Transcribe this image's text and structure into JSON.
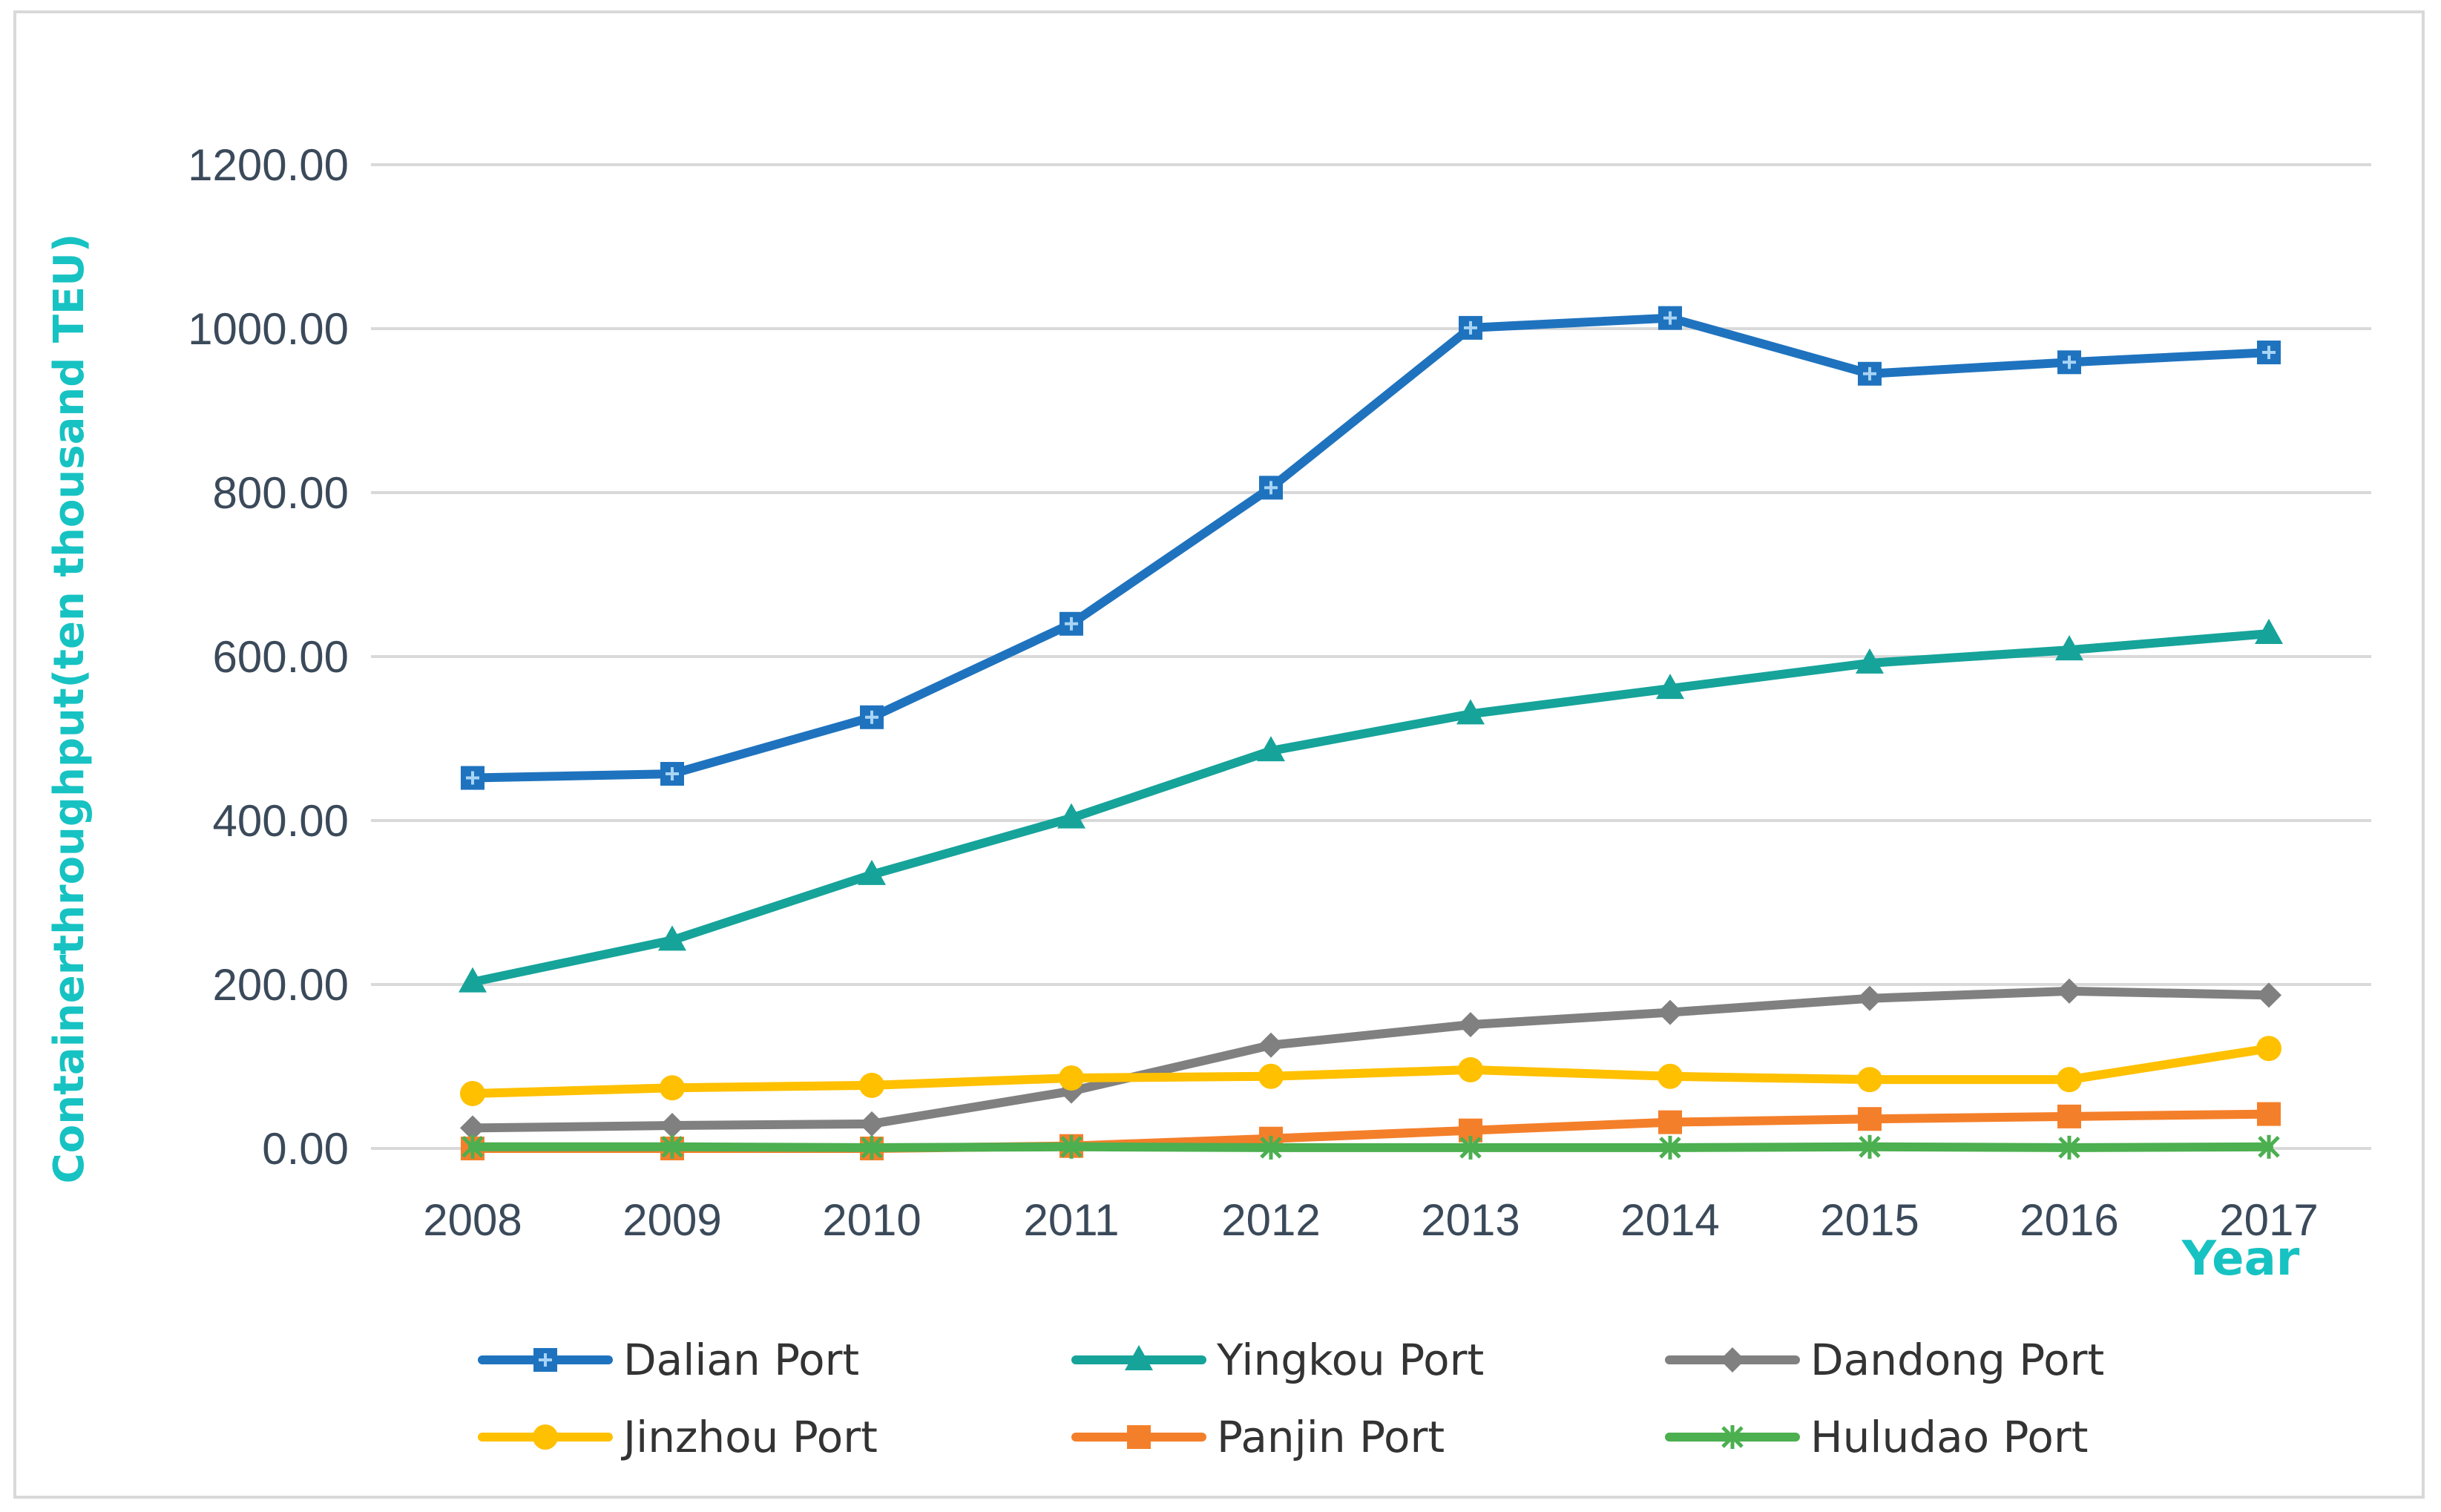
{
  "chart_data": {
    "type": "line",
    "title": "",
    "xlabel": "Year",
    "ylabel": "Containerthroughput(ten thousand TEU)",
    "ylim": [
      0,
      1200
    ],
    "yticks": [
      "0.00",
      "200.00",
      "400.00",
      "600.00",
      "800.00",
      "1000.00",
      "1200.00"
    ],
    "ytick_values": [
      0,
      200,
      400,
      600,
      800,
      1000,
      1200
    ],
    "categories": [
      "2008",
      "2009",
      "2010",
      "2011",
      "2012",
      "2013",
      "2014",
      "2015",
      "2016",
      "2017"
    ],
    "grid": true,
    "legend_position": "bottom",
    "series": [
      {
        "name": "Dalian Port",
        "color": "#1f73be",
        "marker": "plus-square",
        "values": [
          452,
          457,
          526,
          640,
          806,
          1001,
          1013,
          945,
          959,
          971
        ]
      },
      {
        "name": "Yingkou Port",
        "color": "#16a39a",
        "marker": "triangle",
        "values": [
          203,
          254,
          334,
          403,
          485,
          530,
          561,
          592,
          608,
          628
        ]
      },
      {
        "name": "Dandong Port",
        "color": "#808080",
        "marker": "diamond",
        "values": [
          25,
          28,
          30,
          70,
          126,
          151,
          166,
          183,
          192,
          187
        ]
      },
      {
        "name": "Jinzhou Port",
        "color": "#ffc000",
        "marker": "circle",
        "values": [
          67,
          74,
          77,
          86,
          88,
          96,
          88,
          84,
          84,
          122
        ]
      },
      {
        "name": "Panjin Port",
        "color": "#f47f2a",
        "marker": "square",
        "values": [
          0,
          0,
          0,
          3,
          12,
          22,
          32,
          36,
          39,
          42
        ]
      },
      {
        "name": "Huludao Port",
        "color": "#4caf50",
        "marker": "star",
        "values": [
          2,
          2,
          1,
          2,
          1,
          1,
          1,
          2,
          1,
          2
        ]
      }
    ]
  }
}
